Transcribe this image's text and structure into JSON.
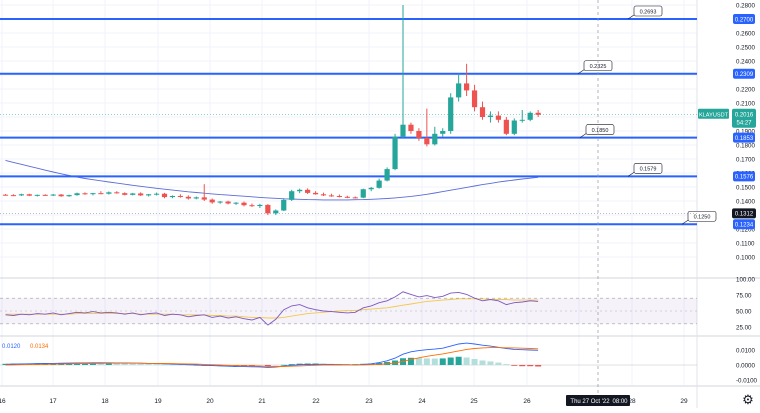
{
  "symbol": "KLAYUSDT",
  "price_label": {
    "price": "0.2016",
    "countdown": "54:27"
  },
  "colors": {
    "up": "#26a69a",
    "down": "#ef5350",
    "hline": "#2962ff",
    "grid": "#f0f3fa",
    "axis_text": "#131722",
    "ma": "#5b6cd6",
    "rsi": "#7e57c2",
    "rsi_ma": "#f2c94c",
    "macd_hist_up": "#26a69a",
    "macd_hist_down": "#ef5350",
    "macd_line": "#2962ff",
    "signal_line": "#ff6d00"
  },
  "price_axis": {
    "ticks": [
      "0.2800",
      "0.2700",
      "0.2600",
      "0.2500",
      "0.2400",
      "0.2300",
      "0.2200",
      "0.2100",
      "0.2000",
      "0.1900",
      "0.1800",
      "0.1700",
      "0.1600",
      "0.1500",
      "0.1400",
      "0.1300",
      "0.1200",
      "0.1100",
      "0.1000"
    ]
  },
  "horizontal_lines": [
    {
      "value": 0.27,
      "label": "0.2700",
      "callout": "0.2693"
    },
    {
      "value": 0.2309,
      "label": "0.2309",
      "callout": "0.2325"
    },
    {
      "value": 0.1853,
      "label": "0.1853",
      "callout": "0.1850"
    },
    {
      "value": 0.1576,
      "label": "0.1576",
      "callout": "0.1579"
    },
    {
      "value": 0.1234,
      "label": "0.1234",
      "callout": "0.1250"
    }
  ],
  "extra_price_label": {
    "value": 0.1312,
    "label": "0.1312"
  },
  "rsi_axis": {
    "ticks": [
      "100.00",
      "75.00",
      "50.00",
      "25.00"
    ]
  },
  "macd_axis": {
    "ticks": [
      "0.0100",
      "0.0000",
      "-0.0100"
    ]
  },
  "macd_legend": {
    "a": "0.0120",
    "b": "0.0134"
  },
  "time_axis": {
    "labels": [
      "16",
      "17",
      "18",
      "19",
      "20",
      "21",
      "22",
      "23",
      "24",
      "25",
      "26",
      "27",
      "28",
      "29"
    ],
    "crosshair_label": "Thu 27 Oct '22",
    "crosshair_time": "08:00"
  },
  "chart_data": {
    "type": "candlestick",
    "instrument": "KLAYUSDT",
    "candles": [
      [
        0.1445,
        0.145,
        0.1438,
        0.1442
      ],
      [
        0.1442,
        0.1448,
        0.1435,
        0.144
      ],
      [
        0.144,
        0.1452,
        0.1436,
        0.1448
      ],
      [
        0.1448,
        0.1452,
        0.1435,
        0.1438
      ],
      [
        0.1438,
        0.1446,
        0.1432,
        0.1444
      ],
      [
        0.1444,
        0.1448,
        0.1436,
        0.144
      ],
      [
        0.144,
        0.145,
        0.1436,
        0.1446
      ],
      [
        0.1446,
        0.145,
        0.143,
        0.1434
      ],
      [
        0.1434,
        0.1445,
        0.143,
        0.1442
      ],
      [
        0.1442,
        0.146,
        0.1438,
        0.1455
      ],
      [
        0.1455,
        0.1462,
        0.1445,
        0.145
      ],
      [
        0.145,
        0.1458,
        0.144,
        0.1456
      ],
      [
        0.1456,
        0.147,
        0.1448,
        0.1452
      ],
      [
        0.1452,
        0.1468,
        0.1446,
        0.1462
      ],
      [
        0.1462,
        0.147,
        0.1452,
        0.1456
      ],
      [
        0.1456,
        0.1462,
        0.144,
        0.1444
      ],
      [
        0.1444,
        0.1458,
        0.144,
        0.1454
      ],
      [
        0.1454,
        0.1462,
        0.1436,
        0.144
      ],
      [
        0.144,
        0.145,
        0.1432,
        0.1448
      ],
      [
        0.1448,
        0.146,
        0.144,
        0.1452
      ],
      [
        0.1452,
        0.1458,
        0.142,
        0.1428
      ],
      [
        0.1428,
        0.144,
        0.142,
        0.1436
      ],
      [
        0.1436,
        0.1448,
        0.1424,
        0.143
      ],
      [
        0.143,
        0.144,
        0.141,
        0.1418
      ],
      [
        0.1418,
        0.1432,
        0.1412,
        0.1426
      ],
      [
        0.1426,
        0.152,
        0.14,
        0.141
      ],
      [
        0.141,
        0.1418,
        0.138,
        0.139
      ],
      [
        0.139,
        0.14,
        0.138,
        0.1396
      ],
      [
        0.1396,
        0.1402,
        0.1376,
        0.1382
      ],
      [
        0.1382,
        0.1392,
        0.1372,
        0.1388
      ],
      [
        0.1388,
        0.1396,
        0.1362,
        0.137
      ],
      [
        0.137,
        0.1382,
        0.1358,
        0.1364
      ],
      [
        0.1364,
        0.138,
        0.135,
        0.1372
      ],
      [
        0.1372,
        0.1378,
        0.13,
        0.1312
      ],
      [
        0.1312,
        0.134,
        0.13,
        0.1332
      ],
      [
        0.1332,
        0.142,
        0.1328,
        0.1408
      ],
      [
        0.1408,
        0.148,
        0.14,
        0.147
      ],
      [
        0.147,
        0.1488,
        0.1456,
        0.148
      ],
      [
        0.148,
        0.149,
        0.145,
        0.1458
      ],
      [
        0.1458,
        0.147,
        0.1445,
        0.1448
      ],
      [
        0.1448,
        0.146,
        0.1436,
        0.144
      ],
      [
        0.144,
        0.1452,
        0.143,
        0.1436
      ],
      [
        0.1436,
        0.1446,
        0.1426,
        0.143
      ],
      [
        0.143,
        0.1438,
        0.142,
        0.1426
      ],
      [
        0.1426,
        0.1432,
        0.1418,
        0.1424
      ],
      [
        0.1424,
        0.1488,
        0.142,
        0.1484
      ],
      [
        0.1484,
        0.15,
        0.147,
        0.1494
      ],
      [
        0.1494,
        0.156,
        0.1488,
        0.1546
      ],
      [
        0.1546,
        0.164,
        0.154,
        0.1628
      ],
      [
        0.1628,
        0.188,
        0.162,
        0.186
      ],
      [
        0.186,
        0.28,
        0.185,
        0.1945
      ],
      [
        0.1945,
        0.196,
        0.188,
        0.19
      ],
      [
        0.19,
        0.192,
        0.183,
        0.185
      ],
      [
        0.185,
        0.206,
        0.179,
        0.1805
      ],
      [
        0.1805,
        0.193,
        0.1796,
        0.188
      ],
      [
        0.188,
        0.192,
        0.186,
        0.19
      ],
      [
        0.19,
        0.217,
        0.188,
        0.214
      ],
      [
        0.214,
        0.231,
        0.211,
        0.224
      ],
      [
        0.224,
        0.238,
        0.215,
        0.219
      ],
      [
        0.219,
        0.223,
        0.204,
        0.207
      ],
      [
        0.207,
        0.211,
        0.198,
        0.2
      ],
      [
        0.2,
        0.204,
        0.196,
        0.201
      ],
      [
        0.201,
        0.204,
        0.196,
        0.198
      ],
      [
        0.198,
        0.2,
        0.187,
        0.188
      ],
      [
        0.188,
        0.199,
        0.187,
        0.1975
      ],
      [
        0.1975,
        0.205,
        0.196,
        0.198
      ],
      [
        0.198,
        0.204,
        0.197,
        0.203
      ],
      [
        0.203,
        0.205,
        0.2,
        0.2016
      ]
    ],
    "moving_average": [
      0.169,
      0.1676,
      0.1662,
      0.1648,
      0.1634,
      0.162,
      0.1607,
      0.1594,
      0.1582,
      0.1571,
      0.1561,
      0.1552,
      0.1544,
      0.1536,
      0.1528,
      0.152,
      0.1512,
      0.1505,
      0.1498,
      0.1491,
      0.1484,
      0.1478,
      0.1472,
      0.1466,
      0.1461,
      0.1456,
      0.1451,
      0.1446,
      0.1442,
      0.1438,
      0.1434,
      0.143,
      0.1426,
      0.1422,
      0.1419,
      0.1416,
      0.1414,
      0.1412,
      0.141,
      0.1409,
      0.1408,
      0.1408,
      0.1408,
      0.1408,
      0.1409,
      0.141,
      0.1412,
      0.1415,
      0.1418,
      0.1422,
      0.1427,
      0.1433,
      0.144,
      0.1448,
      0.1457,
      0.1467,
      0.1477,
      0.1487,
      0.1497,
      0.1507,
      0.1517,
      0.1526,
      0.1535,
      0.1543,
      0.155,
      0.1557,
      0.1563,
      0.1569
    ],
    "rsi": [
      44,
      43,
      45,
      44,
      46,
      45,
      47,
      44,
      46,
      48,
      47,
      49,
      47,
      48,
      47,
      45,
      47,
      44,
      46,
      47,
      43,
      45,
      44,
      41,
      43,
      44,
      40,
      42,
      39,
      41,
      38,
      36,
      40,
      28,
      37,
      52,
      58,
      60,
      55,
      52,
      50,
      49,
      48,
      47,
      48,
      55,
      58,
      63,
      66,
      72,
      80,
      76,
      72,
      74,
      71,
      73,
      78,
      79,
      76,
      70,
      66,
      68,
      66,
      60,
      63,
      64,
      66,
      65
    ],
    "rsi_ma": [
      45,
      45,
      45,
      45,
      45,
      45,
      45,
      45,
      45,
      46,
      46,
      46,
      46,
      46,
      46,
      46,
      46,
      45,
      45,
      45,
      45,
      45,
      44,
      44,
      44,
      44,
      43,
      43,
      42,
      42,
      41,
      40,
      40,
      39,
      39,
      40,
      42,
      44,
      46,
      47,
      48,
      49,
      50,
      51,
      51,
      52,
      53,
      54,
      55,
      57,
      59,
      61,
      63,
      65,
      66,
      67,
      68,
      69,
      69,
      69,
      69,
      68,
      68,
      68,
      67,
      67,
      67,
      67
    ],
    "macd_hist": [
      0.0008,
      0.0009,
      0.001,
      0.001,
      0.0011,
      0.0011,
      0.0012,
      0.0012,
      0.0012,
      0.0013,
      0.0013,
      0.0013,
      0.0012,
      0.0012,
      0.0011,
      0.001,
      0.0009,
      0.0008,
      0.0007,
      0.0006,
      0.0004,
      0.0003,
      0.0002,
      0.0001,
      0.0,
      -0.0002,
      -0.0003,
      -0.0004,
      -0.0005,
      -0.0006,
      -0.0006,
      -0.0007,
      -0.0006,
      -0.0008,
      -0.0005,
      0.0001,
      0.0006,
      0.0009,
      0.001,
      0.001,
      0.0009,
      0.0008,
      0.0007,
      0.0006,
      0.0006,
      0.0008,
      0.001,
      0.0014,
      0.002,
      0.003,
      0.0045,
      0.0048,
      0.0046,
      0.0044,
      0.0043,
      0.0044,
      0.005,
      0.0055,
      0.005,
      0.004,
      0.003,
      0.0024,
      0.0016,
      0.0006,
      -0.0004,
      -0.0008,
      -0.0008,
      -0.001
    ],
    "macd_line": [
      0.0005,
      0.0006,
      0.0007,
      0.0008,
      0.0009,
      0.001,
      0.0011,
      0.0012,
      0.0013,
      0.0014,
      0.0014,
      0.0015,
      0.0015,
      0.0015,
      0.0014,
      0.0014,
      0.0013,
      0.0012,
      0.0011,
      0.001,
      0.0008,
      0.0006,
      0.0004,
      0.0002,
      0.0,
      -0.0002,
      -0.0004,
      -0.0006,
      -0.0008,
      -0.001,
      -0.0011,
      -0.0012,
      -0.0013,
      -0.0016,
      -0.0014,
      -0.0008,
      -0.0002,
      0.0002,
      0.0004,
      0.0005,
      0.0005,
      0.0004,
      0.0003,
      0.0002,
      0.0001,
      0.0004,
      0.0008,
      0.0016,
      0.0028,
      0.0046,
      0.0072,
      0.0088,
      0.0096,
      0.0102,
      0.0106,
      0.0112,
      0.0126,
      0.014,
      0.0146,
      0.014,
      0.0132,
      0.0126,
      0.0118,
      0.011,
      0.0104,
      0.0102,
      0.01,
      0.0098
    ],
    "signal_line": [
      0.0,
      0.0001,
      0.0002,
      0.0003,
      0.0004,
      0.0005,
      0.0006,
      0.0007,
      0.0008,
      0.0009,
      0.001,
      0.0011,
      0.0011,
      0.0012,
      0.0012,
      0.0012,
      0.0012,
      0.0012,
      0.0011,
      0.0011,
      0.001,
      0.0009,
      0.0008,
      0.0007,
      0.0006,
      0.0004,
      0.0002,
      0.0,
      -0.0002,
      -0.0004,
      -0.0005,
      -0.0006,
      -0.0007,
      -0.0009,
      -0.001,
      -0.001,
      -0.0008,
      -0.0006,
      -0.0004,
      -0.0002,
      -0.0001,
      0.0,
      0.0,
      0.0001,
      0.0001,
      0.0001,
      0.0002,
      0.0004,
      0.0008,
      0.0014,
      0.0024,
      0.0036,
      0.0048,
      0.0058,
      0.0066,
      0.0074,
      0.0084,
      0.0094,
      0.0104,
      0.011,
      0.0114,
      0.0116,
      0.0116,
      0.0115,
      0.0114,
      0.0112,
      0.011,
      0.0108
    ]
  }
}
